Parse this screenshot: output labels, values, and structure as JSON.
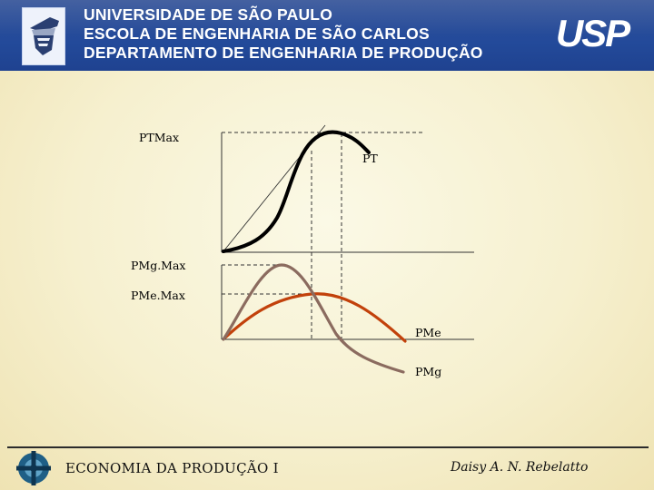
{
  "header": {
    "line1": "UNIVERSIDADE DE SÃO PAULO",
    "line2": "ESCOLA DE ENGENHARIA DE SÃO CARLOS",
    "line3": "DEPARTAMENTO DE ENGENHARIA DE PRODUÇÃO",
    "logo_text": "USP"
  },
  "diagram": {
    "labels": {
      "ptmax": "PTMax",
      "pt": "PT",
      "pmgmax": "PMg.Max",
      "pmemax": "PMe.Max",
      "pme": "PMe",
      "pmg": "PMg"
    },
    "colors": {
      "pt": "#000000",
      "pme": "#c2410b",
      "pmg": "#8b6b5f"
    }
  },
  "footer": {
    "left": "ECONOMIA DA PRODUÇÃO I",
    "right": "Daisy A. N. Rebelatto"
  }
}
